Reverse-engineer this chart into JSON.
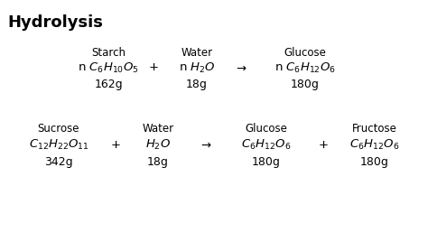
{
  "title": "Hydrolysis",
  "title_fontsize": 13,
  "bg_color": "#ffffff",
  "text_color": "#000000",
  "starch_label": "Starch",
  "water_label1": "Water",
  "glucose_label1": "Glucose",
  "starch_formula": "n $C_6H_{10}O_5$",
  "n_water": "n $H_2O$",
  "n_glucose": "n $C_6H_{12}O_6$",
  "starch_mass": "162g",
  "water_mass1": "18g",
  "glucose_mass1": "180g",
  "sucrose_label": "Sucrose",
  "water_label2": "Water",
  "glucose_label2": "Glucose",
  "fructose_label": "Fructose",
  "sucrose_formula": "$C_{12}H_{22}O_{11}$",
  "h2o": "$H_2O$",
  "glucose2": "$C_6H_{12}O_6$",
  "fructose": "$C_6H_{12}O_6$",
  "sucrose_mass": "342g",
  "water_mass2": "18g",
  "glucose_mass2": "180g",
  "fructose_mass": "180g",
  "font_size_label": 8.5,
  "font_size_formula": 9.5,
  "font_size_mass": 9.0
}
